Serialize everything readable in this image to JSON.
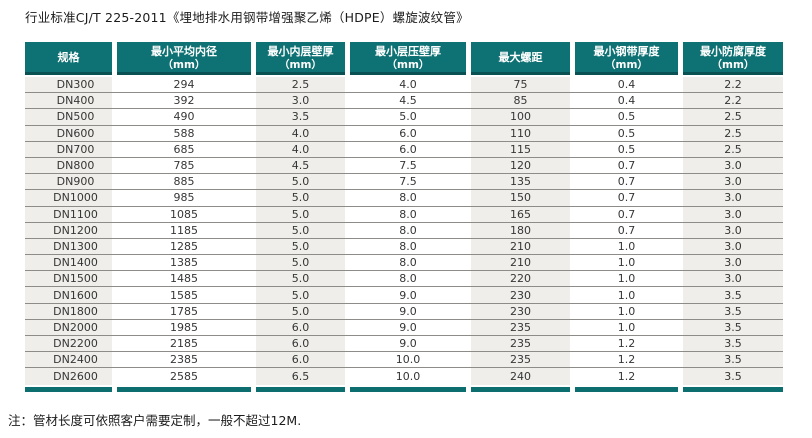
{
  "page": {
    "title": "行业标准CJ/T 225-2011《埋地排水用钢带增强聚乙烯（HDPE）螺旋波纹管》",
    "note": "注：管材长度可依照客户需要定制，一般不超过12M."
  },
  "colors": {
    "header_teal": "#0e7173",
    "bottom_bar_teal": "#0d6e70",
    "column_band_gray": "#efeeea",
    "row_line": "#8e8c88",
    "header_text": "#ffffff",
    "body_text": "#363636"
  },
  "table": {
    "columns": [
      {
        "label": "规格",
        "unit": ""
      },
      {
        "label": "最小平均内径",
        "unit": "（mm）"
      },
      {
        "label": "最小内层壁厚",
        "unit": "（mm）"
      },
      {
        "label": "最小层压壁厚",
        "unit": "（mm）"
      },
      {
        "label": "最大螺距",
        "unit": ""
      },
      {
        "label": "最小钢带厚度",
        "unit": "（mm）"
      },
      {
        "label": "最小防腐厚度",
        "unit": "（mm）"
      }
    ],
    "rows": [
      [
        "DN300",
        "294",
        "2.5",
        "4.0",
        "75",
        "0.4",
        "2.2"
      ],
      [
        "DN400",
        "392",
        "3.0",
        "4.5",
        "85",
        "0.4",
        "2.2"
      ],
      [
        "DN500",
        "490",
        "3.5",
        "5.0",
        "100",
        "0.5",
        "2.5"
      ],
      [
        "DN600",
        "588",
        "4.0",
        "6.0",
        "110",
        "0.5",
        "2.5"
      ],
      [
        "DN700",
        "685",
        "4.0",
        "6.0",
        "115",
        "0.5",
        "2.5"
      ],
      [
        "DN800",
        "785",
        "4.5",
        "7.5",
        "120",
        "0.7",
        "3.0"
      ],
      [
        "DN900",
        "885",
        "5.0",
        "7.5",
        "135",
        "0.7",
        "3.0"
      ],
      [
        "DN1000",
        "985",
        "5.0",
        "8.0",
        "150",
        "0.7",
        "3.0"
      ],
      [
        "DN1100",
        "1085",
        "5.0",
        "8.0",
        "165",
        "0.7",
        "3.0"
      ],
      [
        "DN1200",
        "1185",
        "5.0",
        "8.0",
        "180",
        "0.7",
        "3.0"
      ],
      [
        "DN1300",
        "1285",
        "5.0",
        "8.0",
        "210",
        "1.0",
        "3.0"
      ],
      [
        "DN1400",
        "1385",
        "5.0",
        "8.0",
        "210",
        "1.0",
        "3.0"
      ],
      [
        "DN1500",
        "1485",
        "5.0",
        "8.0",
        "220",
        "1.0",
        "3.0"
      ],
      [
        "DN1600",
        "1585",
        "5.0",
        "9.0",
        "230",
        "1.0",
        "3.5"
      ],
      [
        "DN1800",
        "1785",
        "5.0",
        "9.0",
        "230",
        "1.0",
        "3.5"
      ],
      [
        "DN2000",
        "1985",
        "6.0",
        "9.0",
        "235",
        "1.0",
        "3.5"
      ],
      [
        "DN2200",
        "2185",
        "6.0",
        "9.0",
        "235",
        "1.2",
        "3.5"
      ],
      [
        "DN2400",
        "2385",
        "6.0",
        "10.0",
        "235",
        "1.2",
        "3.5"
      ],
      [
        "DN2600",
        "2585",
        "6.5",
        "10.0",
        "240",
        "1.2",
        "3.5"
      ]
    ]
  }
}
